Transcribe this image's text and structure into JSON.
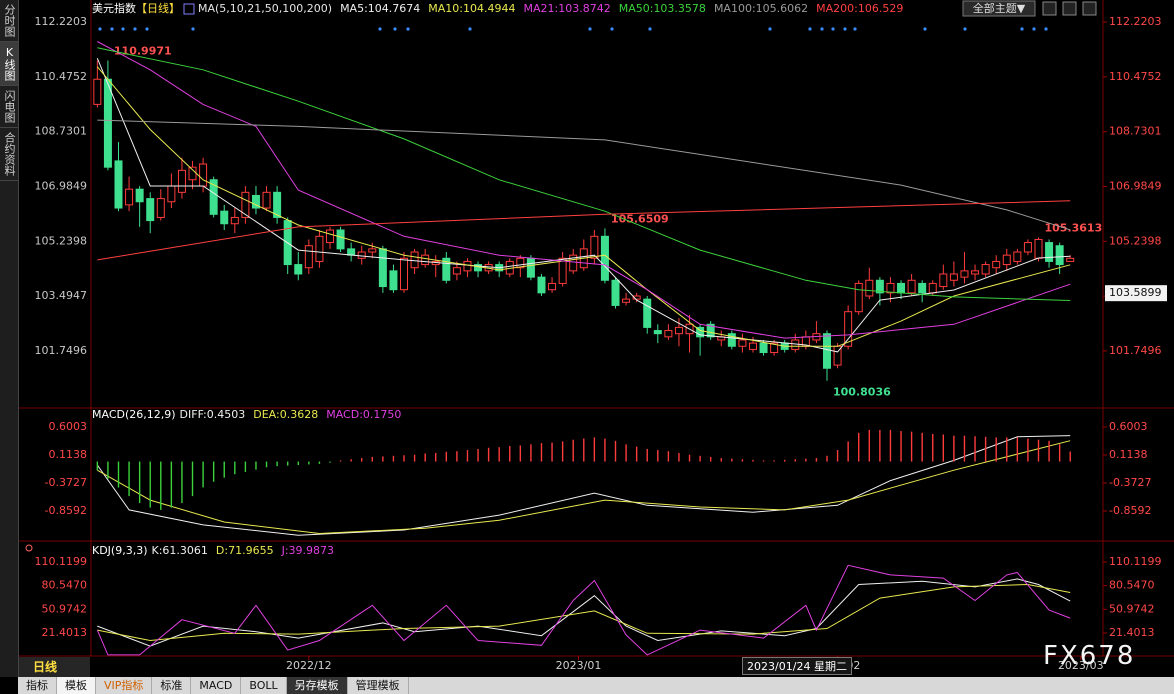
{
  "sidebar": {
    "tabs": [
      "分时图",
      "K线图",
      "闪电图",
      "合约资料"
    ]
  },
  "header": {
    "theme_button": "全部主题▼"
  },
  "crosshair_date": "2023/01/24 星期二",
  "watermark": "FX678",
  "toolbar": {
    "period": "日线",
    "tabs": [
      "指标",
      "模板",
      "VIP指标",
      "标准",
      "MACD",
      "BOLL",
      "另存模板",
      "管理模板"
    ]
  },
  "chart_data": [
    {
      "type": "candlestick",
      "title": "美元指数",
      "subtitle": "【日线】",
      "xlim": [
        -0.6,
        95.1
      ],
      "ylim": [
        100.03,
        112.54
      ],
      "yticks": [
        112.2203,
        110.4752,
        108.7301,
        106.9849,
        105.2398,
        103.4947,
        101.7496
      ],
      "up_color": "#ff3c3c",
      "down_color": "#3ee08f",
      "candles": [
        [
          109.6,
          111.0,
          109.5,
          110.4
        ],
        [
          110.4,
          110.9971,
          107.5,
          107.6
        ],
        [
          107.8,
          108.4,
          106.2,
          106.3
        ],
        [
          106.4,
          107.3,
          106.2,
          106.9
        ],
        [
          106.9,
          107.0,
          105.7,
          106.5
        ],
        [
          106.6,
          106.8,
          105.5,
          105.9
        ],
        [
          106.0,
          106.9,
          105.9,
          106.6
        ],
        [
          106.5,
          107.4,
          106.3,
          107.0
        ],
        [
          106.8,
          107.9,
          106.6,
          107.5
        ],
        [
          107.2,
          107.8,
          106.9,
          107.6
        ],
        [
          107.0,
          107.9,
          106.8,
          107.7
        ],
        [
          107.2,
          107.3,
          106.0,
          106.1
        ],
        [
          106.2,
          106.4,
          105.6,
          105.8
        ],
        [
          105.8,
          106.3,
          105.5,
          106.0
        ],
        [
          106.0,
          107.0,
          105.8,
          106.8
        ],
        [
          106.7,
          107.0,
          106.1,
          106.3
        ],
        [
          106.3,
          107.0,
          106.2,
          106.8
        ],
        [
          106.8,
          107.0,
          105.8,
          106.0
        ],
        [
          105.9,
          106.0,
          104.2,
          104.5
        ],
        [
          104.5,
          104.9,
          104.0,
          104.2
        ],
        [
          104.4,
          105.3,
          104.2,
          105.1
        ],
        [
          104.6,
          105.6,
          104.4,
          105.4
        ],
        [
          105.2,
          105.7,
          105.0,
          105.6
        ],
        [
          105.6,
          105.7,
          104.9,
          105.0
        ],
        [
          105.0,
          105.2,
          104.6,
          104.8
        ],
        [
          104.7,
          105.1,
          104.5,
          104.9
        ],
        [
          104.9,
          105.2,
          104.7,
          105.0
        ],
        [
          105.0,
          105.1,
          103.6,
          103.8
        ],
        [
          104.3,
          104.5,
          103.6,
          103.7
        ],
        [
          103.7,
          104.9,
          103.6,
          104.7
        ],
        [
          104.4,
          105.0,
          104.2,
          104.9
        ],
        [
          104.5,
          105.0,
          104.4,
          104.8
        ],
        [
          104.5,
          104.8,
          104.1,
          104.6
        ],
        [
          104.7,
          104.9,
          103.9,
          104.0
        ],
        [
          104.2,
          104.6,
          104.0,
          104.4
        ],
        [
          104.3,
          104.7,
          104.1,
          104.6
        ],
        [
          104.5,
          104.6,
          104.1,
          104.3
        ],
        [
          104.3,
          104.6,
          104.2,
          104.5
        ],
        [
          104.5,
          104.6,
          104.1,
          104.3
        ],
        [
          104.2,
          104.7,
          104.1,
          104.6
        ],
        [
          104.4,
          104.8,
          104.1,
          104.7
        ],
        [
          104.7,
          104.8,
          104.0,
          104.1
        ],
        [
          104.1,
          104.2,
          103.5,
          103.6
        ],
        [
          103.7,
          104.1,
          103.6,
          103.9
        ],
        [
          103.9,
          104.9,
          103.8,
          104.7
        ],
        [
          104.3,
          105.0,
          104.2,
          104.8
        ],
        [
          104.4,
          105.3,
          104.3,
          105.0
        ],
        [
          104.7,
          105.6,
          104.5,
          105.4
        ],
        [
          105.4,
          105.6509,
          103.9,
          104.0
        ],
        [
          104.0,
          104.1,
          103.1,
          103.2
        ],
        [
          103.3,
          103.6,
          103.2,
          103.4
        ],
        [
          103.4,
          103.6,
          103.3,
          103.5
        ],
        [
          103.4,
          103.5,
          102.3,
          102.5
        ],
        [
          102.4,
          102.6,
          102.0,
          102.3
        ],
        [
          102.2,
          102.6,
          102.1,
          102.4
        ],
        [
          102.3,
          102.8,
          101.9,
          102.5
        ],
        [
          102.3,
          102.9,
          101.7,
          102.6
        ],
        [
          102.5,
          102.6,
          101.6,
          102.2
        ],
        [
          102.6,
          102.7,
          102.1,
          102.2
        ],
        [
          102.1,
          102.4,
          101.9,
          102.2
        ],
        [
          102.3,
          102.4,
          101.8,
          101.9
        ],
        [
          101.9,
          102.3,
          101.7,
          102.1
        ],
        [
          101.8,
          102.2,
          101.7,
          102.0
        ],
        [
          102.0,
          102.1,
          101.6,
          101.7
        ],
        [
          101.7,
          102.1,
          101.6,
          102.0
        ],
        [
          102.0,
          102.1,
          101.7,
          101.8
        ],
        [
          101.8,
          102.3,
          101.7,
          102.1
        ],
        [
          101.9,
          102.4,
          101.8,
          102.2
        ],
        [
          102.1,
          102.7,
          102.0,
          102.3
        ],
        [
          102.3,
          102.4,
          100.8036,
          101.2
        ],
        [
          101.3,
          102.0,
          101.2,
          101.9
        ],
        [
          101.9,
          103.2,
          101.8,
          103.0
        ],
        [
          103.0,
          104.0,
          102.9,
          103.9
        ],
        [
          103.5,
          104.4,
          103.4,
          104.0
        ],
        [
          104.0,
          104.1,
          103.2,
          103.6
        ],
        [
          103.6,
          104.1,
          103.3,
          103.9
        ],
        [
          103.9,
          104.0,
          103.4,
          103.6
        ],
        [
          103.6,
          104.2,
          103.5,
          104.0
        ],
        [
          103.9,
          104.0,
          103.3,
          103.6
        ],
        [
          103.6,
          104.0,
          103.5,
          103.9
        ],
        [
          103.8,
          104.5,
          103.7,
          104.2
        ],
        [
          104.0,
          104.6,
          103.8,
          104.2
        ],
        [
          104.1,
          104.9,
          103.9,
          104.3
        ],
        [
          104.2,
          104.5,
          104.0,
          104.3
        ],
        [
          104.2,
          104.6,
          104.1,
          104.5
        ],
        [
          104.4,
          104.8,
          104.2,
          104.6
        ],
        [
          104.5,
          105.0,
          104.3,
          104.8
        ],
        [
          104.6,
          105.0,
          104.5,
          104.9
        ],
        [
          104.9,
          105.3,
          104.8,
          105.2
        ],
        [
          104.7,
          105.3613,
          104.6,
          105.3
        ],
        [
          105.2,
          105.3,
          104.4,
          104.6
        ],
        [
          105.1,
          105.2,
          104.2,
          104.5
        ],
        [
          104.6,
          104.8,
          104.6,
          104.7
        ]
      ],
      "series": [
        {
          "name": "MA(5,10,21,50,100,200)",
          "color": "#e6e6e6",
          "x": [],
          "values": []
        },
        {
          "name": "MA5:104.7674",
          "color": "#f0f0f0",
          "x": [
            0,
            5,
            10,
            19,
            29,
            38,
            47,
            51,
            57,
            67,
            70,
            74,
            81,
            89,
            92
          ],
          "values": [
            111.07,
            107.0,
            107.0,
            104.96,
            104.65,
            104.4,
            104.8,
            103.37,
            102.26,
            101.94,
            101.72,
            103.37,
            103.69,
            104.71,
            104.7674
          ]
        },
        {
          "name": "MA10:104.4944",
          "color": "#e8e850",
          "x": [
            0,
            5,
            10,
            19,
            29,
            38,
            48,
            52,
            57,
            65,
            70,
            76,
            81,
            92
          ],
          "values": [
            110.8,
            108.8,
            107.2,
            105.76,
            104.8,
            104.33,
            104.8,
            103.7,
            102.4,
            101.9,
            101.9,
            102.7,
            103.5,
            104.4944
          ]
        },
        {
          "name": "MA21:103.8742",
          "color": "#e040e0",
          "x": [
            0,
            5,
            10,
            15,
            19,
            29,
            38,
            48,
            52,
            57,
            65,
            71,
            81,
            92
          ],
          "values": [
            111.6,
            110.7,
            109.6,
            108.9,
            106.87,
            105.4,
            104.8,
            104.49,
            103.7,
            102.6,
            102.16,
            102.26,
            102.6,
            103.8742
          ]
        },
        {
          "name": "MA50:103.3578",
          "color": "#3cd23c",
          "x": [
            0,
            10,
            19,
            29,
            38,
            48,
            57,
            67,
            72,
            81,
            92
          ],
          "values": [
            111.4,
            110.7,
            109.7,
            108.5,
            107.2,
            106.2,
            104.96,
            104.0,
            103.7,
            103.47,
            103.3578
          ]
        },
        {
          "name": "MA100:105.6062",
          "color": "#9a9a9a",
          "x": [
            0,
            19,
            48,
            76,
            86,
            92
          ],
          "values": [
            109.1,
            108.9,
            108.47,
            107.03,
            106.24,
            105.6062
          ]
        },
        {
          "name": "MA200:106.529",
          "color": "#ff4040",
          "x": [
            0,
            19,
            48,
            92
          ],
          "values": [
            104.65,
            105.7,
            106.1,
            106.529
          ]
        }
      ],
      "annotations": [
        {
          "x": 1,
          "value": 110.9971
        },
        {
          "x": 48,
          "value": 105.6509
        },
        {
          "x": 69,
          "value": 100.8036
        },
        {
          "x": 89,
          "value": 105.3613
        }
      ],
      "last_price": 103.5899
    },
    {
      "type": "macd",
      "title": "MACD(26,12,9)",
      "xlim": [
        -0.6,
        95.1
      ],
      "ylim": [
        -1.363,
        0.896
      ],
      "yticks": [
        0.6003,
        0.1138,
        -0.3727,
        -0.8592
      ],
      "up_color": "#ff3c3c",
      "down_color": "#3cd23c",
      "series": [
        {
          "name": "DIFF:0.4503",
          "color": "#f0f0f0",
          "x": [
            0,
            3,
            10,
            19,
            29,
            38,
            47,
            52,
            62,
            70,
            75,
            81,
            87,
            92
          ],
          "values": [
            -0.06,
            -0.84,
            -1.1,
            -1.28,
            -1.19,
            -0.93,
            -0.55,
            -0.76,
            -0.88,
            -0.76,
            -0.33,
            0.02,
            0.43,
            0.4503
          ]
        },
        {
          "name": "DEA:0.3628",
          "color": "#e8e850",
          "x": [
            0,
            5,
            12,
            21,
            31,
            38,
            48,
            57,
            65,
            71,
            81,
            92
          ],
          "values": [
            -0.15,
            -0.67,
            -1.05,
            -1.25,
            -1.16,
            -1.02,
            -0.67,
            -0.79,
            -0.84,
            -0.67,
            -0.15,
            0.3628
          ]
        },
        {
          "name": "MACD:0.1750",
          "color": "#e040e0",
          "type": "bar",
          "values": [
            -0.15,
            -0.3,
            -0.45,
            -0.6,
            -0.72,
            -0.8,
            -0.84,
            -0.8,
            -0.72,
            -0.6,
            -0.45,
            -0.35,
            -0.28,
            -0.22,
            -0.18,
            -0.14,
            -0.1,
            -0.08,
            -0.07,
            -0.06,
            -0.05,
            -0.04,
            -0.02,
            0.02,
            0.04,
            0.06,
            0.08,
            0.09,
            0.1,
            0.11,
            0.12,
            0.14,
            0.15,
            0.17,
            0.18,
            0.2,
            0.22,
            0.24,
            0.25,
            0.27,
            0.28,
            0.3,
            0.32,
            0.33,
            0.35,
            0.38,
            0.4,
            0.42,
            0.4,
            0.36,
            0.3,
            0.26,
            0.22,
            0.2,
            0.18,
            0.15,
            0.12,
            0.1,
            0.08,
            0.06,
            0.05,
            0.04,
            0.03,
            0.02,
            0.02,
            0.03,
            0.04,
            0.05,
            0.06,
            0.1,
            0.2,
            0.35,
            0.5,
            0.55,
            0.55,
            0.55,
            0.53,
            0.52,
            0.5,
            0.48,
            0.47,
            0.45,
            0.45,
            0.44,
            0.43,
            0.42,
            0.42,
            0.42,
            0.4,
            0.38,
            0.36,
            0.3,
            0.175
          ]
        }
      ]
    },
    {
      "type": "line",
      "title": "KDJ(9,3,3)",
      "xlim": [
        -0.6,
        95.1
      ],
      "ylim": [
        -6.1,
        125.1
      ],
      "yticks": [
        110.1199,
        {
          "value": 80.547,
          "label": "80.5470"
        },
        50.9742,
        21.4013
      ],
      "xticks": [
        {
          "value": 20,
          "label": "2022/12"
        },
        {
          "value": 45.5,
          "label": "2023/01"
        },
        {
          "value": 70,
          "label": "2023/02"
        },
        {
          "value": 93,
          "label": "2023/03"
        }
      ],
      "series": [
        {
          "name": "K:61.3061",
          "color": "#f0f0f0",
          "x": [
            0,
            5,
            10,
            15,
            19,
            27,
            30,
            36,
            42,
            47,
            50,
            53,
            59,
            65,
            68,
            72,
            78,
            83,
            87,
            89,
            92
          ],
          "values": [
            30,
            5,
            30,
            23,
            15,
            34,
            23,
            30,
            18,
            68,
            30,
            12,
            24,
            18,
            27,
            82,
            86,
            79,
            89,
            82,
            61.3061
          ]
        },
        {
          "name": "D:71.9655",
          "color": "#e8e850",
          "x": [
            0,
            5,
            12,
            19,
            29,
            38,
            47,
            52,
            62,
            69,
            74,
            81,
            88,
            92
          ],
          "values": [
            25,
            12,
            21,
            20,
            27,
            30,
            49,
            21,
            20,
            27,
            65,
            79,
            82,
            71.9655
          ]
        },
        {
          "name": "J:39.9873",
          "color": "#e040e0",
          "x": [
            0,
            1,
            4,
            8,
            13,
            15,
            18,
            21,
            26,
            29,
            33,
            36,
            42,
            45,
            47,
            50,
            52,
            57,
            63,
            67,
            68,
            71,
            75,
            80,
            83,
            86,
            87,
            90,
            92
          ],
          "values": [
            25,
            -6,
            -6,
            38,
            21,
            56,
            0,
            12,
            56,
            12,
            56,
            12,
            6,
            62,
            87,
            19,
            -6,
            25,
            15,
            56,
            25,
            106,
            94,
            90,
            62,
            94,
            97,
            50,
            39.9873
          ]
        }
      ]
    }
  ]
}
